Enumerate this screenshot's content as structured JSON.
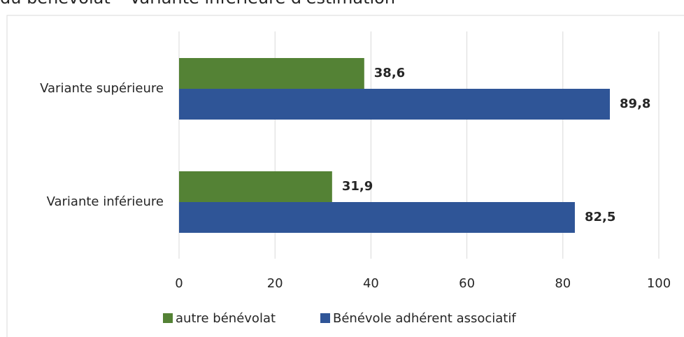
{
  "chart_data": {
    "type": "hbar",
    "title": "du bénévolat – Variante inférieure d'estimation",
    "categories": [
      "Variante supérieure",
      "Variante inférieure"
    ],
    "series": [
      {
        "name": "autre bénévolat",
        "color": "#548235",
        "values": [
          38.6,
          31.9
        ],
        "value_labels": [
          "38,6",
          "31,9"
        ]
      },
      {
        "name": "Bénévole adhérent associatif",
        "color": "#2f5597",
        "values": [
          89.8,
          82.5
        ],
        "value_labels": [
          "89,8",
          "82,5"
        ]
      }
    ],
    "xlim": [
      0,
      100
    ],
    "xticks": [
      0,
      20,
      40,
      60,
      80,
      100
    ],
    "grid": true,
    "legend": "bottom"
  }
}
